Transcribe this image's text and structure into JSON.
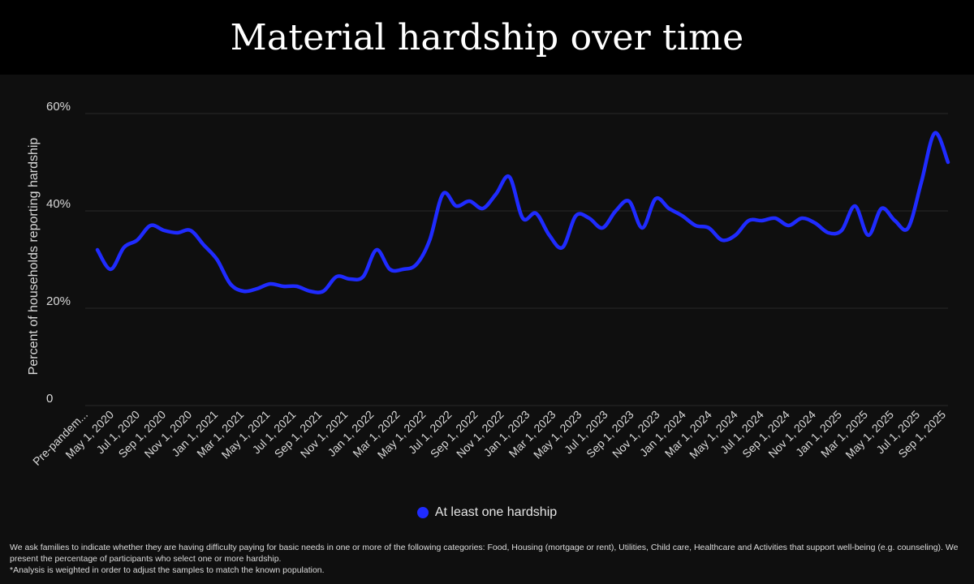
{
  "title": "Material hardship over time",
  "footnote": {
    "line1": "We ask families to indicate whether they are having difficulty paying for basic needs in one or more of the following categories: Food, Housing (mortgage or rent), Utilities, Child care, Healthcare and Activities that support well-being (e.g. counseling). We present the percentage of participants who select one or more hardship.",
    "line2": "*Analysis is weighted in order to adjust the samples to match the known population."
  },
  "colors": {
    "series": "#1f2bff",
    "grid": "#2a2a2a",
    "text": "#d9d9d9"
  },
  "chart_data": {
    "type": "line",
    "title": "Material hardship over time",
    "xlabel": "",
    "ylabel": "Percent of households reporting hardship",
    "ylim": [
      0,
      60
    ],
    "yticks": [
      0,
      20,
      40,
      60
    ],
    "ytick_labels": [
      "0",
      "20%",
      "40%",
      "60%"
    ],
    "grid": true,
    "legend_position": "bottom-center",
    "xticks": [
      "Pre-pandem...",
      "May 1, 2020",
      "Jul 1, 2020",
      "Sep 1, 2020",
      "Nov 1, 2020",
      "Jan 1, 2021",
      "Mar 1, 2021",
      "May 1, 2021",
      "Jul 1, 2021",
      "Sep 1, 2021",
      "Nov 1, 2021",
      "Jan 1, 2022",
      "Mar 1, 2022",
      "May 1, 2022",
      "Jul 1, 2022",
      "Sep 1, 2022",
      "Nov 1, 2022",
      "Jan 1, 2023",
      "Mar 1, 2023",
      "May 1, 2023",
      "Jul 1, 2023",
      "Sep 1, 2023",
      "Nov 1, 2023",
      "Jan 1, 2024",
      "Mar 1, 2024",
      "May 1, 2024",
      "Jul 1, 2024",
      "Sep 1, 2024",
      "Nov 1, 2024",
      "Jan 1, 2025",
      "Mar 1, 2025",
      "May 1, 2025",
      "Jul 1, 2025",
      "Sep 1, 2025"
    ],
    "series": [
      {
        "name": "At least one hardship",
        "color": "#1f2bff",
        "values": [
          32,
          28,
          32.5,
          34,
          37,
          36,
          35.5,
          36,
          33,
          30,
          25,
          23.5,
          24,
          25,
          24.5,
          24.5,
          23.5,
          23.5,
          26.5,
          26,
          26.5,
          32,
          28,
          28,
          29,
          34,
          43.5,
          41,
          42,
          40.5,
          43.5,
          47,
          38.5,
          39.5,
          35,
          32.5,
          39,
          38.5,
          36.5,
          40,
          42,
          36.5,
          42.5,
          40.5,
          39,
          37,
          36.5,
          34,
          35,
          38,
          38,
          38.5,
          37,
          38.5,
          37.5,
          35.5,
          36,
          41,
          35,
          40.5,
          38,
          36.5,
          46,
          56,
          50
        ]
      }
    ]
  }
}
